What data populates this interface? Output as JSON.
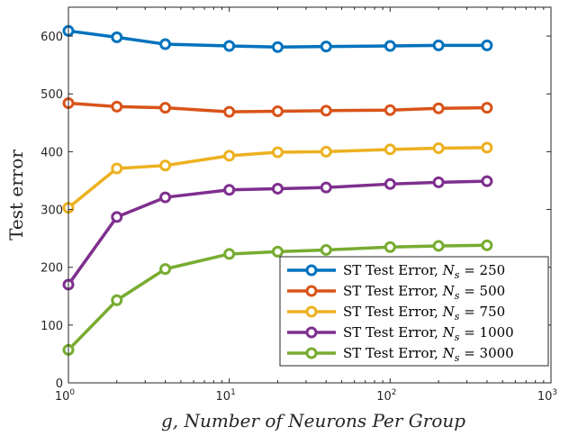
{
  "chart_data": {
    "type": "line",
    "xscale": "log",
    "xlim": [
      1,
      1000
    ],
    "ylim": [
      0,
      650
    ],
    "xlabel": "g, Number of Neurons Per Group",
    "ylabel": "Test error",
    "x": [
      1,
      2,
      4,
      10,
      20,
      40,
      100,
      200,
      400
    ],
    "x_ticks": [
      1,
      10,
      100,
      1000
    ],
    "x_tick_labels": [
      {
        "base": "10",
        "exp": "0"
      },
      {
        "base": "10",
        "exp": "1"
      },
      {
        "base": "10",
        "exp": "2"
      },
      {
        "base": "10",
        "exp": "3"
      }
    ],
    "y_ticks": [
      0,
      100,
      200,
      300,
      400,
      500,
      600
    ],
    "y_tick_labels": [
      "0",
      "100",
      "200",
      "300",
      "400",
      "500",
      "600"
    ],
    "grid": false,
    "legend_position": "bottom-right",
    "series": [
      {
        "name": "ST Test Error, N_s = 250",
        "legend_prefix": "ST Test Error, ",
        "legend_value": "250",
        "color": "#0072bd",
        "values": [
          609,
          598,
          586,
          583,
          581,
          582,
          583,
          584,
          584
        ]
      },
      {
        "name": "ST Test Error, N_s = 500",
        "legend_prefix": "ST Test Error, ",
        "legend_value": "500",
        "color": "#d95319",
        "values": [
          484,
          478,
          476,
          469,
          470,
          471,
          472,
          475,
          476
        ]
      },
      {
        "name": "ST Test Error, N_s = 750",
        "legend_prefix": "ST Test Error, ",
        "legend_value": "750",
        "color": "#edb120",
        "values": [
          303,
          371,
          376,
          393,
          399,
          400,
          404,
          406,
          407
        ]
      },
      {
        "name": "ST Test Error, N_s = 1000",
        "legend_prefix": "ST Test Error, ",
        "legend_value": "1000",
        "color": "#7e2f8e",
        "values": [
          170,
          287,
          321,
          334,
          336,
          338,
          344,
          347,
          349
        ]
      },
      {
        "name": "ST Test Error, N_s = 3000",
        "legend_prefix": "ST Test Error, ",
        "legend_value": "3000",
        "color": "#77ac30",
        "values": [
          57,
          143,
          197,
          223,
          227,
          230,
          235,
          237,
          238
        ]
      }
    ]
  }
}
